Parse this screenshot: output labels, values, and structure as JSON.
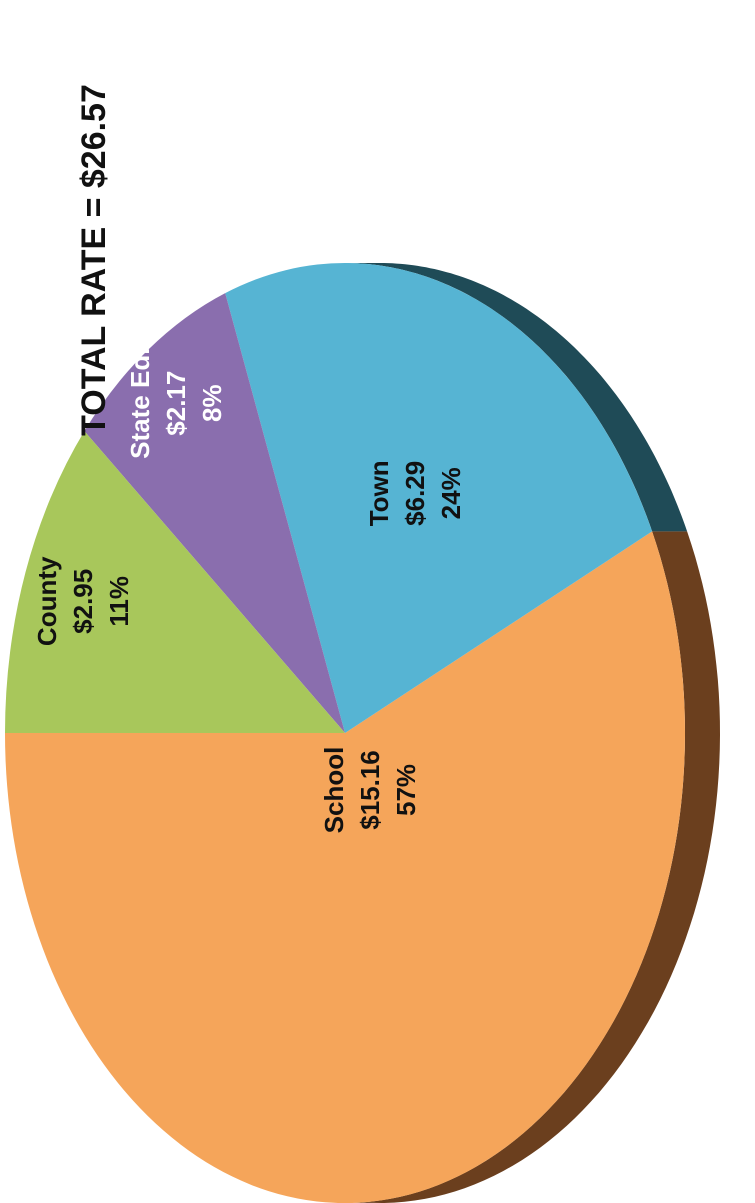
{
  "chart_data": {
    "type": "pie",
    "title": "TOTAL RATE = $26.57",
    "slices": [
      {
        "name": "School",
        "value": 15.16,
        "value_label": "$15.16",
        "percent_label": "57%",
        "color": "#F5A55A",
        "side_color": "#6B3F1E"
      },
      {
        "name": "Town",
        "value": 6.29,
        "value_label": "$6.29",
        "percent_label": "24%",
        "color": "#56B4D3",
        "side_color": "#1F4B57"
      },
      {
        "name": "State Ed.",
        "value": 2.17,
        "value_label": "$2.17",
        "percent_label": "8%",
        "color": "#8A6EAE",
        "side_color": "#4A3A60"
      },
      {
        "name": "County",
        "value": 2.95,
        "value_label": "$2.95",
        "percent_label": "11%",
        "color": "#A8C75B",
        "side_color": "#556530"
      }
    ],
    "label_colors": {
      "default": "#111111",
      "State Ed.": "#ffffff"
    },
    "legend": false
  }
}
